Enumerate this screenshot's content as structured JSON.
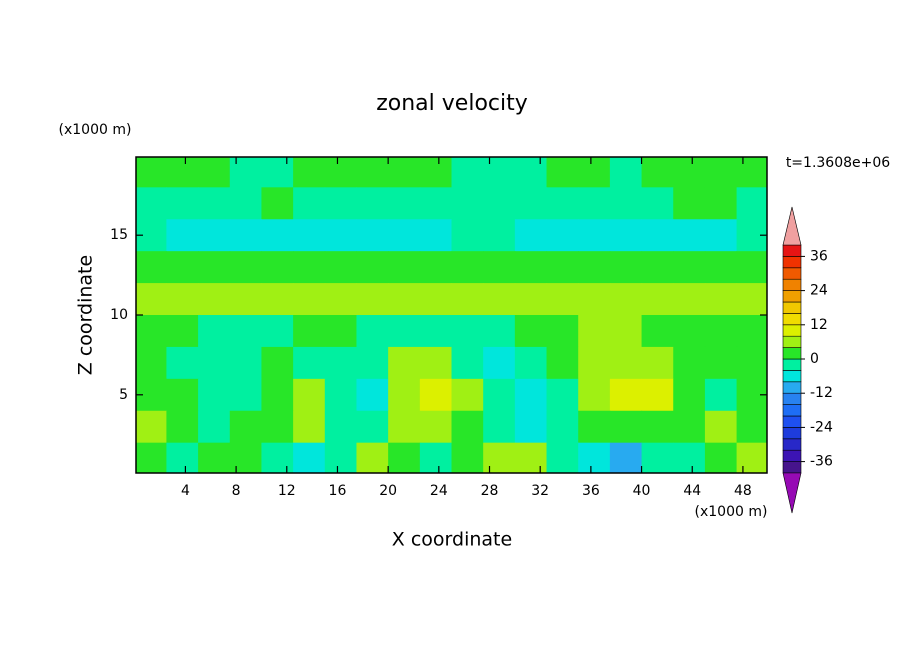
{
  "chart_data": {
    "type": "contour",
    "title": "zonal velocity",
    "xlabel": "X coordinate",
    "ylabel": "Z coordinate",
    "xunit": "(x1000 m)",
    "yunit": "(x1000 m)",
    "time_label": "t=1.3608e+06",
    "xlim": [
      0.1,
      49.9
    ],
    "ylim": [
      0.1,
      19.9
    ],
    "xticks": [
      4,
      8,
      12,
      16,
      20,
      24,
      28,
      32,
      36,
      40,
      44,
      48
    ],
    "yticks": [
      5,
      10,
      15
    ],
    "x": [
      1.25,
      3.75,
      6.25,
      8.75,
      11.25,
      13.75,
      16.25,
      18.75,
      21.25,
      23.75,
      26.25,
      28.75,
      31.25,
      33.75,
      36.25,
      38.75,
      41.25,
      43.75,
      46.25,
      48.75
    ],
    "z": [
      19,
      17,
      15,
      13,
      11,
      9,
      7,
      5,
      3,
      1
    ],
    "values": [
      [
        1,
        1,
        1,
        -1,
        -1,
        1,
        1,
        2,
        1,
        1,
        -1,
        -1,
        -1,
        1,
        1,
        -1,
        1,
        1,
        1,
        1
      ],
      [
        -1,
        -2,
        -2,
        -1,
        1,
        -1,
        -2,
        -2,
        -1,
        -1,
        -2,
        -2,
        -1,
        -2,
        -1,
        -1,
        -2,
        1,
        1,
        -1
      ],
      [
        -2,
        -5,
        -5,
        -5,
        -5,
        -5,
        -5,
        -5,
        -5,
        -5,
        -2,
        -2,
        -5,
        -5,
        -5,
        -5,
        -5,
        -5,
        -5,
        -2
      ],
      [
        3,
        2,
        2,
        2,
        2,
        2,
        2,
        2,
        2,
        3,
        3,
        2,
        2,
        2,
        2,
        2,
        2,
        2,
        2,
        2
      ],
      [
        5,
        6,
        6,
        6,
        5,
        5,
        5,
        5,
        5,
        6,
        7,
        5,
        5,
        5,
        5,
        5,
        5,
        5,
        5,
        5
      ],
      [
        2,
        1,
        -2,
        -2,
        -2,
        1,
        1,
        -2,
        -2,
        -2,
        -2,
        -2,
        1,
        2,
        5,
        5,
        2,
        2,
        1,
        1
      ],
      [
        1,
        -2,
        -2,
        -2,
        1,
        -2,
        -2,
        -2,
        5,
        5,
        -2,
        -5,
        -2,
        1,
        6,
        7,
        6,
        2,
        1,
        1
      ],
      [
        2,
        1,
        -2,
        -2,
        1,
        6,
        -2,
        -5,
        7,
        9,
        5,
        -2,
        -6,
        -2,
        5,
        9,
        9,
        2,
        -2,
        1
      ],
      [
        6,
        2,
        -2,
        2,
        1,
        5,
        -2,
        -2,
        5,
        5,
        1,
        -2,
        -5,
        -2,
        1,
        2,
        1,
        1,
        6,
        2
      ],
      [
        2,
        -2,
        1,
        1,
        -2,
        -6,
        -2,
        5,
        2,
        -2,
        1,
        5,
        5,
        -2,
        -6,
        -9,
        -2,
        -2,
        1,
        5
      ]
    ],
    "colorbar": {
      "levels": [
        -40,
        -36,
        -32,
        -28,
        -24,
        -20,
        -16,
        -12,
        -8,
        -4,
        0,
        4,
        8,
        12,
        16,
        20,
        24,
        28,
        32,
        36,
        40
      ],
      "ticks": [
        -36,
        -24,
        -12,
        0,
        12,
        24,
        36
      ],
      "colors": [
        "#960ab4",
        "#46148c",
        "#3c14b4",
        "#2828c8",
        "#1e3cdc",
        "#1e50f0",
        "#1e6ef5",
        "#2882f0",
        "#28aaf0",
        "#00e6dc",
        "#00f0a0",
        "#28e628",
        "#a0f014",
        "#dcf000",
        "#f0dc00",
        "#f0c800",
        "#f0a000",
        "#f08200",
        "#f05a00",
        "#f03200",
        "#e61414",
        "#f0a0a0"
      ]
    }
  }
}
